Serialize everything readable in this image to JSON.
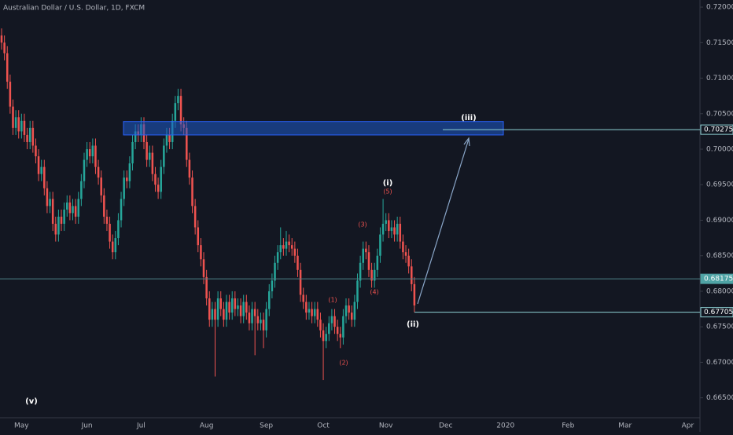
{
  "chart_data": {
    "type": "candlestick",
    "title": "Australian Dollar / U.S. Dollar, 1D, FXCM",
    "up_color": "#26a69a",
    "down_color": "#ef5350",
    "categories": [
      null,
      null,
      null,
      null,
      null,
      null,
      null,
      "May",
      null,
      null,
      null,
      null,
      null,
      null,
      null,
      null,
      null,
      null,
      null,
      null,
      null,
      null,
      null,
      null,
      null,
      null,
      null,
      null,
      null,
      null,
      "Jun",
      null,
      null,
      null,
      null,
      null,
      null,
      null,
      null,
      null,
      null,
      null,
      null,
      null,
      null,
      null,
      null,
      null,
      null,
      "Jul",
      null,
      null,
      null,
      null,
      null,
      null,
      null,
      null,
      null,
      null,
      null,
      null,
      null,
      null,
      null,
      null,
      null,
      null,
      null,
      null,
      null,
      null,
      "Aug",
      null,
      null,
      null,
      null,
      null,
      null,
      null,
      null,
      null,
      null,
      null,
      null,
      null,
      null,
      null,
      null,
      null,
      null,
      null,
      null,
      "Sep",
      null,
      null,
      null,
      null,
      null,
      null,
      null,
      null,
      null,
      null,
      null,
      null,
      null,
      null,
      null,
      null,
      null,
      null,
      null,
      "Oct",
      null,
      null,
      null,
      null,
      null,
      null,
      null,
      null,
      null,
      null,
      null,
      null,
      null,
      null,
      null,
      null,
      null,
      null,
      null,
      null,
      null,
      "Nov",
      null,
      null,
      null,
      null,
      null,
      null,
      null,
      null,
      null,
      null,
      null,
      null,
      null,
      null,
      null,
      null,
      null,
      null,
      null,
      null,
      "Dec",
      null,
      null,
      null,
      null,
      null,
      null,
      null,
      null,
      null,
      null,
      null,
      null,
      null,
      null,
      null,
      null,
      null,
      null,
      null,
      null,
      "2020",
      null,
      null,
      null,
      null,
      null,
      null,
      null,
      null,
      null,
      null,
      null,
      null,
      null,
      null,
      null,
      null,
      null,
      null,
      null,
      null,
      null,
      "Feb",
      null,
      null,
      null,
      null,
      null,
      null,
      null,
      null,
      null,
      null,
      null,
      null,
      null,
      null,
      null,
      null,
      null,
      null,
      null,
      "Mar",
      null,
      null,
      null,
      null,
      null,
      null,
      null,
      null,
      null,
      null,
      null,
      null,
      null,
      null,
      null,
      null,
      null,
      null,
      null,
      null,
      null,
      "Apr"
    ],
    "open": [
      0.716,
      0.715,
      0.7135,
      0.7095,
      0.706,
      0.703,
      0.7045,
      0.7025,
      0.704,
      0.702,
      0.701,
      0.703,
      0.7005,
      0.699,
      0.6965,
      0.6975,
      0.6945,
      0.692,
      0.693,
      0.6895,
      0.688,
      0.6905,
      0.6895,
      0.6915,
      0.6925,
      0.691,
      0.692,
      0.6905,
      0.693,
      0.6955,
      0.6985,
      0.7,
      0.699,
      0.7005,
      0.6975,
      0.696,
      0.6935,
      0.6905,
      0.6895,
      0.687,
      0.6855,
      0.6875,
      0.69,
      0.693,
      0.696,
      0.6955,
      0.698,
      0.701,
      0.7025,
      0.702,
      0.7035,
      0.701,
      0.6985,
      0.6995,
      0.6965,
      0.695,
      0.694,
      0.6975,
      0.7005,
      0.702,
      0.701,
      0.704,
      0.7065,
      0.7075,
      0.7035,
      0.703,
      0.6985,
      0.696,
      0.692,
      0.689,
      0.6865,
      0.6845,
      0.682,
      0.679,
      0.676,
      0.6775,
      0.676,
      0.679,
      0.6775,
      0.676,
      0.6785,
      0.677,
      0.679,
      0.6775,
      0.678,
      0.6765,
      0.6785,
      0.677,
      0.6755,
      0.6775,
      0.6765,
      0.6755,
      0.676,
      0.6745,
      0.6775,
      0.68,
      0.6815,
      0.684,
      0.6855,
      0.6865,
      0.686,
      0.687,
      0.6865,
      0.686,
      0.685,
      0.683,
      0.6795,
      0.6785,
      0.677,
      0.6775,
      0.6765,
      0.6775,
      0.676,
      0.6745,
      0.673,
      0.674,
      0.6755,
      0.6765,
      0.675,
      0.674,
      0.6735,
      0.6765,
      0.678,
      0.677,
      0.676,
      0.6785,
      0.6815,
      0.684,
      0.686,
      0.6855,
      0.683,
      0.6815,
      0.683,
      0.685,
      0.688,
      0.6895,
      0.69,
      0.6885,
      0.689,
      0.688,
      0.6895,
      0.687,
      0.6855,
      0.685,
      0.6835,
      0.681,
      null,
      null,
      null,
      null,
      null,
      null,
      null,
      null,
      null,
      null,
      null,
      null,
      null,
      null,
      null,
      null,
      null,
      null,
      null,
      null,
      null,
      null,
      null,
      null,
      null,
      null,
      null,
      null,
      null,
      null,
      null,
      null,
      null,
      null,
      null,
      null,
      null,
      null,
      null,
      null,
      null,
      null,
      null,
      null,
      null,
      null,
      null,
      null,
      null,
      null,
      null,
      null,
      null,
      null,
      null,
      null,
      null,
      null,
      null,
      null,
      null,
      null,
      null,
      null,
      null,
      null,
      null,
      null,
      null,
      null,
      null,
      null,
      null,
      null,
      null,
      null,
      null,
      null,
      null,
      null,
      null,
      null,
      null,
      null,
      null,
      null,
      null,
      null,
      null,
      null,
      null,
      null,
      null,
      null,
      null,
      null
    ],
    "high": [
      0.717,
      0.716,
      0.7145,
      0.7105,
      0.707,
      0.7055,
      0.7055,
      0.705,
      0.705,
      0.703,
      0.704,
      0.704,
      0.7015,
      0.7,
      0.6985,
      0.6985,
      0.6955,
      0.694,
      0.694,
      0.6905,
      0.6915,
      0.6915,
      0.6925,
      0.6935,
      0.6935,
      0.693,
      0.693,
      0.694,
      0.6965,
      0.6995,
      0.701,
      0.701,
      0.7015,
      0.7015,
      0.6985,
      0.697,
      0.6945,
      0.6915,
      0.6905,
      0.688,
      0.6885,
      0.691,
      0.694,
      0.697,
      0.697,
      0.699,
      0.702,
      0.7035,
      0.7035,
      0.7045,
      0.7045,
      0.702,
      0.7005,
      0.7005,
      0.6975,
      0.696,
      0.6985,
      0.7015,
      0.703,
      0.703,
      0.705,
      0.7075,
      0.7085,
      0.7085,
      0.7045,
      0.704,
      0.6995,
      0.697,
      0.693,
      0.69,
      0.6875,
      0.6855,
      0.683,
      0.68,
      0.6785,
      0.6785,
      0.68,
      0.68,
      0.6785,
      0.6795,
      0.6795,
      0.68,
      0.68,
      0.679,
      0.679,
      0.6795,
      0.6795,
      0.678,
      0.6785,
      0.6785,
      0.6775,
      0.677,
      0.677,
      0.6785,
      0.681,
      0.6825,
      0.685,
      0.6865,
      0.689,
      0.6875,
      0.6885,
      0.688,
      0.6875,
      0.687,
      0.686,
      0.684,
      0.6805,
      0.6795,
      0.6785,
      0.6785,
      0.6785,
      0.6785,
      0.677,
      0.6755,
      0.675,
      0.6765,
      0.6775,
      0.6775,
      0.676,
      0.675,
      0.6775,
      0.679,
      0.679,
      0.678,
      0.6795,
      0.6825,
      0.685,
      0.687,
      0.687,
      0.6865,
      0.684,
      0.684,
      0.686,
      0.689,
      0.693,
      0.691,
      0.691,
      0.69,
      0.69,
      0.6905,
      0.6905,
      0.688,
      0.6865,
      0.686,
      0.6845,
      0.682,
      null,
      null,
      null,
      null,
      null,
      null,
      null,
      null,
      null,
      null,
      null,
      null,
      null,
      null,
      null,
      null,
      null,
      null,
      null,
      null,
      null,
      null,
      null,
      null,
      null,
      null,
      null,
      null,
      null,
      null,
      null,
      null,
      null,
      null,
      null,
      null,
      null,
      null,
      null,
      null,
      null,
      null,
      null,
      null,
      null,
      null,
      null,
      null,
      null,
      null,
      null,
      null,
      null,
      null,
      null,
      null,
      null,
      null,
      null,
      null,
      null,
      null,
      null,
      null,
      null,
      null,
      null,
      null,
      null,
      null,
      null,
      null,
      null,
      null,
      null,
      null,
      null,
      null,
      null,
      null,
      null,
      null,
      null,
      null,
      null,
      null,
      null,
      null,
      null,
      null,
      null,
      null,
      null,
      null,
      null,
      null
    ],
    "low": [
      0.714,
      0.7125,
      0.7085,
      0.705,
      0.702,
      0.702,
      0.7015,
      0.7015,
      0.701,
      0.7,
      0.7,
      0.6995,
      0.698,
      0.6955,
      0.6955,
      0.6935,
      0.691,
      0.691,
      0.6885,
      0.687,
      0.687,
      0.6885,
      0.6885,
      0.6905,
      0.69,
      0.69,
      0.6895,
      0.6895,
      0.692,
      0.6945,
      0.6975,
      0.698,
      0.698,
      0.6965,
      0.695,
      0.6925,
      0.6895,
      0.6885,
      0.686,
      0.6845,
      0.6845,
      0.6865,
      0.689,
      0.692,
      0.6945,
      0.6945,
      0.697,
      0.7,
      0.701,
      0.701,
      0.7,
      0.6975,
      0.6975,
      0.6955,
      0.694,
      0.693,
      0.693,
      0.6965,
      0.6995,
      0.7,
      0.7,
      0.703,
      0.7055,
      0.7025,
      0.702,
      0.6975,
      0.695,
      0.691,
      0.688,
      0.6855,
      0.6835,
      0.681,
      0.678,
      0.675,
      0.675,
      0.668,
      0.675,
      0.6765,
      0.675,
      0.675,
      0.676,
      0.676,
      0.6765,
      0.6765,
      0.6755,
      0.6755,
      0.676,
      0.6745,
      0.6745,
      0.671,
      0.6745,
      0.6745,
      0.672,
      0.6735,
      0.6765,
      0.679,
      0.6805,
      0.683,
      0.6845,
      0.685,
      0.685,
      0.6855,
      0.685,
      0.684,
      0.682,
      0.6785,
      0.6775,
      0.676,
      0.676,
      0.6755,
      0.6755,
      0.675,
      0.6735,
      0.6675,
      0.672,
      0.673,
      0.6745,
      0.674,
      0.673,
      0.672,
      0.6725,
      0.6755,
      0.676,
      0.675,
      0.675,
      0.6775,
      0.6805,
      0.683,
      0.6845,
      0.682,
      0.6805,
      0.6805,
      0.682,
      0.684,
      0.687,
      0.6885,
      0.6875,
      0.6875,
      0.687,
      0.687,
      0.686,
      0.6845,
      0.684,
      0.6825,
      0.68,
      0.67705,
      null,
      null,
      null,
      null,
      null,
      null,
      null,
      null,
      null,
      null,
      null,
      null,
      null,
      null,
      null,
      null,
      null,
      null,
      null,
      null,
      null,
      null,
      null,
      null,
      null,
      null,
      null,
      null,
      null,
      null,
      null,
      null,
      null,
      null,
      null,
      null,
      null,
      null,
      null,
      null,
      null,
      null,
      null,
      null,
      null,
      null,
      null,
      null,
      null,
      null,
      null,
      null,
      null,
      null,
      null,
      null,
      null,
      null,
      null,
      null,
      null,
      null,
      null,
      null,
      null,
      null,
      null,
      null,
      null,
      null,
      null,
      null,
      null,
      null,
      null,
      null,
      null,
      null,
      null,
      null,
      null,
      null,
      null,
      null,
      null,
      null,
      null,
      null,
      null,
      null,
      null,
      null,
      null,
      null,
      null,
      null
    ],
    "close": [
      0.715,
      0.7135,
      0.7095,
      0.706,
      0.703,
      0.7045,
      0.7025,
      0.704,
      0.702,
      0.701,
      0.703,
      0.7005,
      0.699,
      0.6965,
      0.6975,
      0.6945,
      0.692,
      0.693,
      0.6895,
      0.688,
      0.6905,
      0.6895,
      0.6915,
      0.6925,
      0.691,
      0.692,
      0.6905,
      0.693,
      0.6955,
      0.6985,
      0.7,
      0.699,
      0.7005,
      0.6975,
      0.696,
      0.6935,
      0.6905,
      0.6895,
      0.687,
      0.6855,
      0.6875,
      0.69,
      0.693,
      0.696,
      0.6955,
      0.698,
      0.701,
      0.7025,
      0.702,
      0.7035,
      0.701,
      0.6985,
      0.6995,
      0.6965,
      0.695,
      0.694,
      0.6975,
      0.7005,
      0.702,
      0.701,
      0.704,
      0.7065,
      0.7075,
      0.7035,
      0.703,
      0.6985,
      0.696,
      0.692,
      0.689,
      0.6865,
      0.6845,
      0.682,
      0.679,
      0.676,
      0.6775,
      0.676,
      0.679,
      0.6775,
      0.676,
      0.6785,
      0.677,
      0.679,
      0.6775,
      0.678,
      0.6765,
      0.6785,
      0.677,
      0.6755,
      0.6775,
      0.6765,
      0.6755,
      0.676,
      0.6745,
      0.6775,
      0.68,
      0.6815,
      0.684,
      0.6855,
      0.6865,
      0.686,
      0.687,
      0.6865,
      0.686,
      0.685,
      0.683,
      0.6795,
      0.6785,
      0.677,
      0.6775,
      0.6765,
      0.6775,
      0.676,
      0.6745,
      0.673,
      0.674,
      0.6755,
      0.6765,
      0.675,
      0.674,
      0.6735,
      0.6765,
      0.678,
      0.677,
      0.676,
      0.6785,
      0.6815,
      0.684,
      0.686,
      0.6855,
      0.683,
      0.6815,
      0.683,
      0.685,
      0.688,
      0.6895,
      0.69,
      0.6885,
      0.689,
      0.688,
      0.6895,
      0.687,
      0.6855,
      0.685,
      0.6835,
      0.681,
      0.678,
      null,
      null,
      null,
      null,
      null,
      null,
      null,
      null,
      null,
      null,
      null,
      null,
      null,
      null,
      null,
      null,
      null,
      null,
      null,
      null,
      null,
      null,
      null,
      null,
      null,
      null,
      null,
      null,
      null,
      null,
      null,
      null,
      null,
      null,
      null,
      null,
      null,
      null,
      null,
      null,
      null,
      null,
      null,
      null,
      null,
      null,
      null,
      null,
      null,
      null,
      null,
      null,
      null,
      null,
      null,
      null,
      null,
      null,
      null,
      null,
      null,
      null,
      null,
      null,
      null,
      null,
      null,
      null,
      null,
      null,
      null,
      null,
      null,
      null,
      null,
      null,
      null,
      null,
      null,
      null,
      null,
      null,
      null,
      null,
      null,
      null,
      null,
      null,
      null,
      null,
      null,
      null,
      null,
      null,
      null,
      null
    ],
    "ylim": [
      0.6622,
      0.721
    ],
    "yticks": [
      {
        "value": 0.665,
        "label": "0.66500"
      },
      {
        "value": 0.67,
        "label": "0.67000"
      },
      {
        "value": 0.675,
        "label": "0.67500"
      },
      {
        "value": 0.68,
        "label": "0.68000"
      },
      {
        "value": 0.685,
        "label": "0.68500"
      },
      {
        "value": 0.69,
        "label": "0.69000"
      },
      {
        "value": 0.695,
        "label": "0.69500"
      },
      {
        "value": 0.7,
        "label": "0.70000"
      },
      {
        "value": 0.705,
        "label": "0.70500"
      },
      {
        "value": 0.71,
        "label": "0.71000"
      },
      {
        "value": 0.715,
        "label": "0.71500"
      },
      {
        "value": 0.72,
        "label": "0.72000"
      }
    ],
    "price_lines": [
      {
        "value": 0.70275,
        "label": "0.70275"
      },
      {
        "value": 0.68175,
        "label": "0.68175"
      },
      {
        "value": 0.67705,
        "label": "0.67705"
      }
    ],
    "zone": {
      "low": 0.702,
      "high": 0.7039
    },
    "annotations": [
      "(v)",
      "(i)",
      "(ii)",
      "(iii)",
      "(1)",
      "(2)",
      "(3)",
      "(4)",
      "(5)"
    ]
  }
}
